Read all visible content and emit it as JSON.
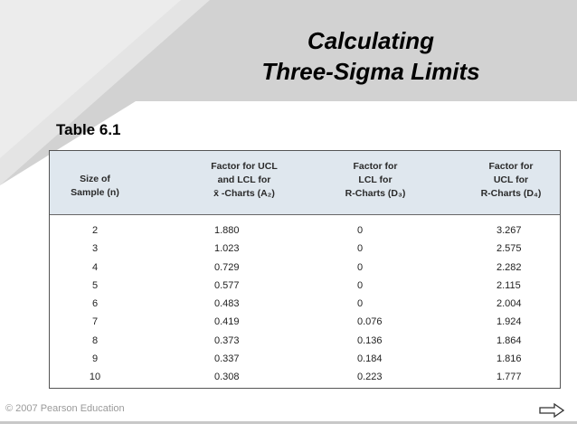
{
  "slide": {
    "title_line1": "Calculating",
    "title_line2": "Three-Sigma Limits",
    "table_caption": "Table 6.1",
    "footer": "© 2007 Pearson Education"
  },
  "table": {
    "headers": [
      [
        "Size of",
        "Sample (n)"
      ],
      [
        "Factor for UCL",
        "and LCL for",
        "x̄ -Charts (A₂)"
      ],
      [
        "Factor for",
        "LCL for",
        "R-Charts (D₃)"
      ],
      [
        "Factor for",
        "UCL for",
        "R-Charts (D₄)"
      ]
    ],
    "rows": [
      [
        "2",
        "1.880",
        "0",
        "3.267"
      ],
      [
        "3",
        "1.023",
        "0",
        "2.575"
      ],
      [
        "4",
        "0.729",
        "0",
        "2.282"
      ],
      [
        "5",
        "0.577",
        "0",
        "2.115"
      ],
      [
        "6",
        "0.483",
        "0",
        "2.004"
      ],
      [
        "7",
        "0.419",
        "0.076",
        "1.924"
      ],
      [
        "8",
        "0.373",
        "0.136",
        "1.864"
      ],
      [
        "9",
        "0.337",
        "0.184",
        "1.816"
      ],
      [
        "10",
        "0.308",
        "0.223",
        "1.777"
      ]
    ]
  },
  "icons": {
    "next": "right-arrow-icon"
  },
  "colors": {
    "banner": "#c9c9c9",
    "banner_light": "#dedede",
    "header_bg": "#dfe7ee"
  }
}
